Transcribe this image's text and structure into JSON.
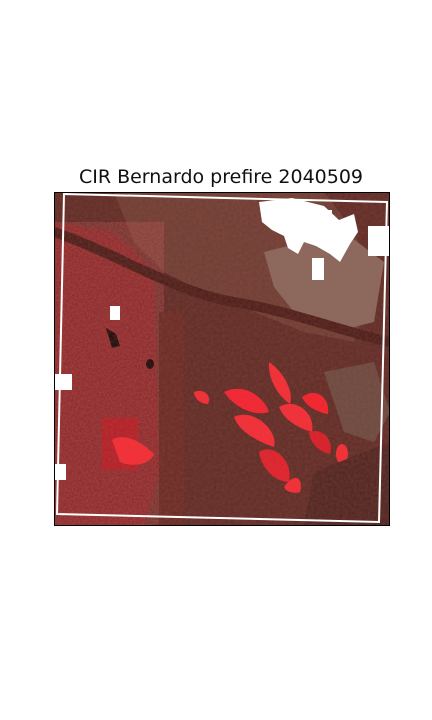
{
  "figure": {
    "title": "CIR Bernardo prefire 2040509"
  },
  "image": {
    "description_name": "color-infrared-aerial-image",
    "colors": {
      "background": "#5a2a24",
      "vegetation": "#d4202a",
      "bright_vegetation": "#ff2a34",
      "bare_ground": "#7a5a50",
      "water_dark": "#1a0a0a",
      "nodata": "#ffffff",
      "boundary": "#ffffff"
    }
  }
}
